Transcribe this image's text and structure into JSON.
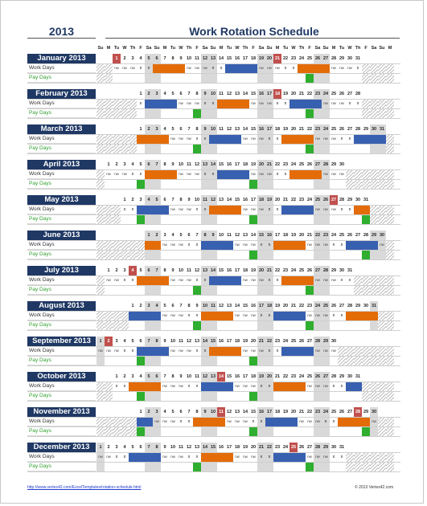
{
  "header": {
    "year": "2013",
    "title": "Work Rotation Schedule"
  },
  "day_headers": [
    "Su",
    "M",
    "Tu",
    "W",
    "Th",
    "F",
    "Sa",
    "Su",
    "M",
    "Tu",
    "W",
    "Th",
    "F",
    "Sa",
    "Su",
    "M",
    "Tu",
    "W",
    "Th",
    "F",
    "Sa",
    "Su",
    "M",
    "Tu",
    "W",
    "Th",
    "F",
    "Sa",
    "Su",
    "M",
    "Tu",
    "W",
    "Th",
    "F",
    "Sa",
    "Su",
    "M"
  ],
  "row_labels": {
    "work": "Work Days",
    "pay": "Pay Days"
  },
  "marks": {
    "off": "x",
    "no_work": "nw"
  },
  "legend_colors": {
    "shift_a": "#e36c09",
    "shift_b": "#3860b0",
    "pay_day": "#2fae2f",
    "holiday": "#c0504d",
    "weekend": "#d9d9d9",
    "header": "#1f3864"
  },
  "months": [
    {
      "name": "January 2013",
      "start": 2,
      "days": 31,
      "holidays": [
        1,
        21
      ],
      "work": [
        "nw",
        "nw",
        "nw",
        "x",
        "x",
        "sh",
        "sh",
        "sh",
        "sh",
        "nw",
        "nw",
        "nw",
        "x",
        "x",
        "bl",
        "bl",
        "bl",
        "bl",
        "nw",
        "nw",
        "nw",
        "x",
        "x",
        "sh",
        "sh",
        "sh",
        "sh",
        "nw",
        "nw",
        "nw",
        "x"
      ],
      "pay": [
        25
      ]
    },
    {
      "name": "February 2013",
      "start": 5,
      "days": 28,
      "holidays": [
        18
      ],
      "work": [
        "x",
        "bl",
        "bl",
        "bl",
        "bl",
        "nw",
        "nw",
        "nw",
        "x",
        "x",
        "sh",
        "sh",
        "sh",
        "sh",
        "nw",
        "nw",
        "nw",
        "x",
        "x",
        "bl",
        "bl",
        "bl",
        "bl",
        "nw",
        "nw",
        "nw",
        "x",
        "x"
      ],
      "pay": [
        8,
        22
      ]
    },
    {
      "name": "March 2013",
      "start": 5,
      "days": 31,
      "holidays": [],
      "work": [
        "sh",
        "sh",
        "sh",
        "sh",
        "nw",
        "nw",
        "nw",
        "x",
        "x",
        "bl",
        "bl",
        "bl",
        "bl",
        "nw",
        "nw",
        "nw",
        "x",
        "x",
        "sh",
        "sh",
        "sh",
        "sh",
        "nw",
        "nw",
        "nw",
        "x",
        "x",
        "bl",
        "bl",
        "bl",
        "bl"
      ],
      "pay": [
        8,
        22
      ]
    },
    {
      "name": "April 2013",
      "start": 1,
      "days": 30,
      "holidays": [],
      "work": [
        "nw",
        "nw",
        "nw",
        "x",
        "x",
        "sh",
        "sh",
        "sh",
        "sh",
        "nw",
        "nw",
        "nw",
        "x",
        "x",
        "bl",
        "bl",
        "bl",
        "bl",
        "nw",
        "nw",
        "nw",
        "x",
        "x",
        "sh",
        "sh",
        "sh",
        "sh",
        "nw",
        "nw",
        "nw"
      ],
      "pay": [
        5,
        19
      ]
    },
    {
      "name": "May 2013",
      "start": 3,
      "days": 31,
      "holidays": [
        27
      ],
      "work": [
        "x",
        "x",
        "bl",
        "bl",
        "bl",
        "bl",
        "nw",
        "nw",
        "nw",
        "x",
        "x",
        "sh",
        "sh",
        "sh",
        "sh",
        "nw",
        "nw",
        "nw",
        "x",
        "x",
        "bl",
        "bl",
        "bl",
        "bl",
        "nw",
        "nw",
        "nw",
        "x",
        "x",
        "sh",
        "sh"
      ],
      "pay": [
        3,
        17,
        31
      ]
    },
    {
      "name": "June 2013",
      "start": 6,
      "days": 30,
      "holidays": [],
      "work": [
        "sh",
        "sh",
        "nw",
        "nw",
        "nw",
        "x",
        "x",
        "bl",
        "bl",
        "bl",
        "bl",
        "nw",
        "nw",
        "nw",
        "x",
        "x",
        "sh",
        "sh",
        "sh",
        "sh",
        "nw",
        "nw",
        "nw",
        "x",
        "x",
        "bl",
        "bl",
        "bl",
        "bl",
        "nw"
      ],
      "pay": [
        14,
        28
      ]
    },
    {
      "name": "July 2013",
      "start": 1,
      "days": 31,
      "holidays": [
        4
      ],
      "work": [
        "nw",
        "nw",
        "x",
        "x",
        "sh",
        "sh",
        "sh",
        "sh",
        "nw",
        "nw",
        "nw",
        "x",
        "x",
        "bl",
        "bl",
        "bl",
        "bl",
        "nw",
        "nw",
        "nw",
        "x",
        "x",
        "sh",
        "sh",
        "sh",
        "sh",
        "nw",
        "nw",
        "nw",
        "x",
        "x"
      ],
      "pay": [
        12,
        26
      ]
    },
    {
      "name": "August 2013",
      "start": 4,
      "days": 31,
      "holidays": [],
      "work": [
        "bl",
        "bl",
        "bl",
        "bl",
        "nw",
        "nw",
        "nw",
        "x",
        "x",
        "sh",
        "sh",
        "sh",
        "sh",
        "nw",
        "nw",
        "nw",
        "x",
        "x",
        "bl",
        "bl",
        "bl",
        "bl",
        "nw",
        "nw",
        "nw",
        "x",
        "x",
        "sh",
        "sh",
        "sh",
        "sh"
      ],
      "pay": [
        9,
        23
      ]
    },
    {
      "name": "September 2013",
      "start": 0,
      "days": 30,
      "holidays": [
        2
      ],
      "work": [
        "nw",
        "nw",
        "nw",
        "x",
        "x",
        "bl",
        "bl",
        "bl",
        "bl",
        "nw",
        "nw",
        "nw",
        "x",
        "x",
        "sh",
        "sh",
        "sh",
        "sh",
        "nw",
        "nw",
        "nw",
        "x",
        "x",
        "bl",
        "bl",
        "bl",
        "bl",
        "nw",
        "nw",
        "nw"
      ],
      "pay": [
        6,
        20
      ]
    },
    {
      "name": "October 2013",
      "start": 2,
      "days": 31,
      "holidays": [
        14
      ],
      "work": [
        "x",
        "x",
        "sh",
        "sh",
        "sh",
        "sh",
        "nw",
        "nw",
        "nw",
        "x",
        "x",
        "bl",
        "bl",
        "bl",
        "bl",
        "nw",
        "nw",
        "nw",
        "x",
        "x",
        "sh",
        "sh",
        "sh",
        "sh",
        "nw",
        "nw",
        "nw",
        "x",
        "x",
        "bl",
        "bl"
      ],
      "pay": [
        4,
        18
      ]
    },
    {
      "name": "November 2013",
      "start": 5,
      "days": 30,
      "holidays": [
        11,
        28
      ],
      "work": [
        "bl",
        "bl",
        "nw",
        "nw",
        "nw",
        "x",
        "x",
        "sh",
        "sh",
        "sh",
        "sh",
        "nw",
        "nw",
        "nw",
        "x",
        "x",
        "bl",
        "bl",
        "bl",
        "bl",
        "nw",
        "nw",
        "nw",
        "x",
        "x",
        "sh",
        "sh",
        "sh",
        "sh",
        "nw"
      ],
      "pay": [
        1,
        15,
        29
      ]
    },
    {
      "name": "December 2013",
      "start": 0,
      "days": 31,
      "holidays": [
        25
      ],
      "work": [
        "nw",
        "nw",
        "x",
        "x",
        "bl",
        "bl",
        "bl",
        "bl",
        "nw",
        "nw",
        "nw",
        "x",
        "x",
        "sh",
        "sh",
        "sh",
        "sh",
        "nw",
        "nw",
        "nw",
        "x",
        "x",
        "bl",
        "bl",
        "bl",
        "bl",
        "nw",
        "nw",
        "nw",
        "x",
        "x"
      ],
      "pay": [
        13,
        27
      ]
    }
  ],
  "footer": {
    "link": "http://www.vertex42.com/ExcelTemplates/rotation-schedule.html",
    "copyright": "© 2013 Vertex42.com"
  }
}
